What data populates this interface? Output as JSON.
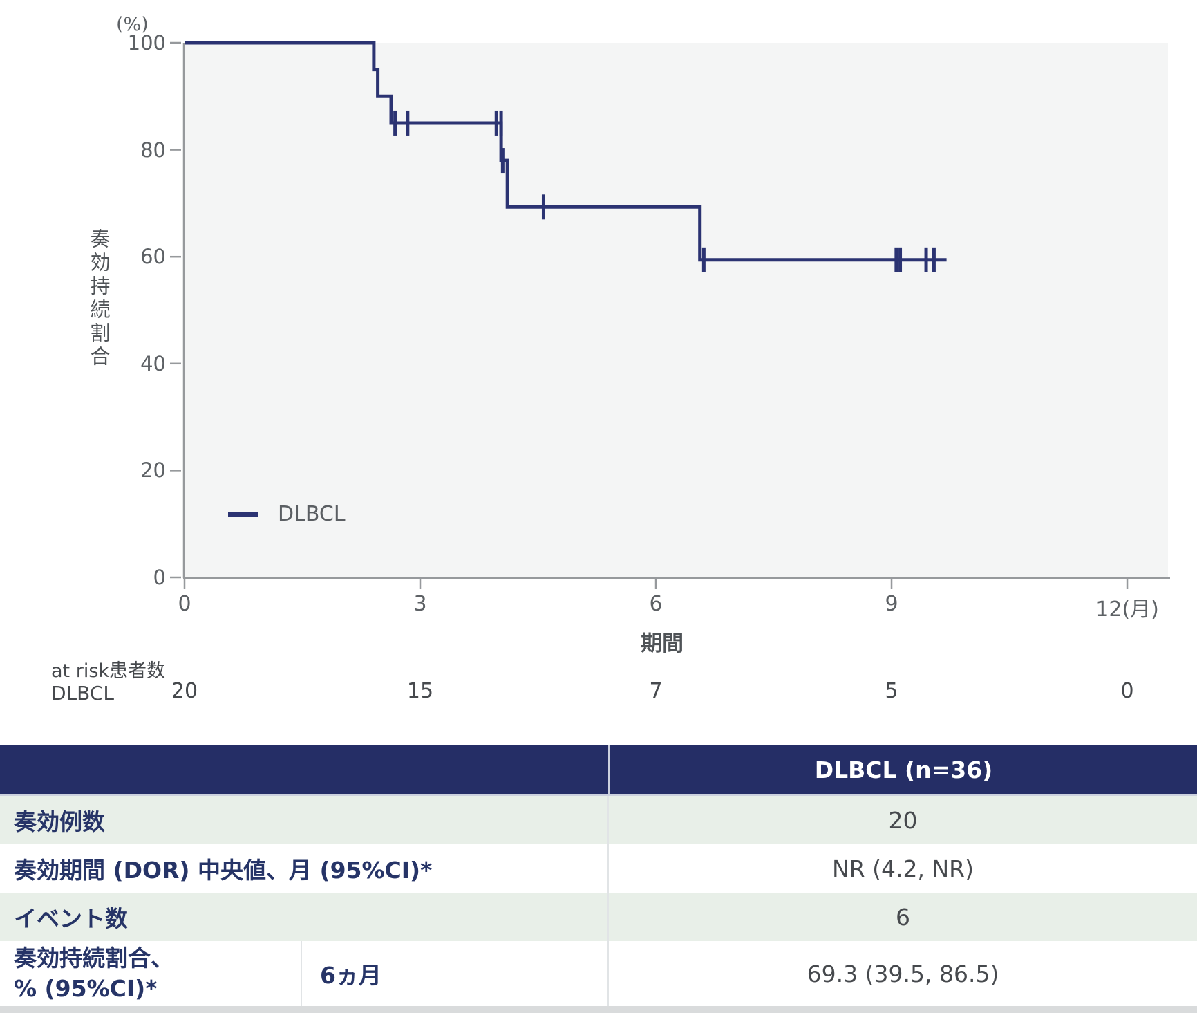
{
  "chart": {
    "y_unit": "(%)",
    "ylabel": "奏効持続割合",
    "xlabel": "期間",
    "legend": "DLBCL"
  },
  "chart_data": {
    "type": "line",
    "subtype": "kaplan-meier-step-curve",
    "title": "",
    "xlabel": "期間",
    "ylabel": "奏効持続割合 (%)",
    "xlim": [
      0,
      12.5
    ],
    "ylim": [
      0,
      100
    ],
    "grid": false,
    "legend_position": "lower-left-inside",
    "xticks": [
      {
        "value": 0,
        "label": "0"
      },
      {
        "value": 3,
        "label": "3"
      },
      {
        "value": 6,
        "label": "6"
      },
      {
        "value": 9,
        "label": "9"
      },
      {
        "value": 12,
        "label": "12(月)"
      }
    ],
    "yticks": [
      {
        "value": 100,
        "label": "100"
      },
      {
        "value": 80,
        "label": "80"
      },
      {
        "value": 60,
        "label": "60"
      },
      {
        "value": 40,
        "label": "40"
      },
      {
        "value": 20,
        "label": "20"
      },
      {
        "value": 0,
        "label": "0"
      }
    ],
    "series": [
      {
        "name": "DLBCL",
        "color": "#2b3372",
        "steps_months_pct": [
          [
            0,
            100
          ],
          [
            2.41,
            100
          ],
          [
            2.41,
            95
          ],
          [
            2.46,
            95
          ],
          [
            2.46,
            90
          ],
          [
            2.63,
            90
          ],
          [
            2.63,
            85
          ],
          [
            4.03,
            85
          ],
          [
            4.03,
            78
          ],
          [
            4.11,
            78
          ],
          [
            4.11,
            69.3
          ],
          [
            6.56,
            69.3
          ],
          [
            6.56,
            59.4
          ],
          [
            9.7,
            59.4
          ]
        ],
        "censor_marks_months_pct": [
          [
            2.68,
            85
          ],
          [
            2.84,
            85
          ],
          [
            3.97,
            85
          ],
          [
            4.03,
            85
          ],
          [
            4.05,
            78
          ],
          [
            4.57,
            69.3
          ],
          [
            6.61,
            59.4
          ],
          [
            9.06,
            59.4
          ],
          [
            9.11,
            59.4
          ],
          [
            9.44,
            59.4
          ],
          [
            9.54,
            59.4
          ]
        ]
      }
    ]
  },
  "at_risk": {
    "title": "at risk患者数",
    "row_label": "DLBCL",
    "values": [
      "20",
      "15",
      "7",
      "5",
      "0"
    ]
  },
  "table": {
    "header_col2": "DLBCL (n=36)",
    "rows": [
      {
        "label": "奏効例数",
        "value": "20"
      },
      {
        "label": "奏効期間 (DOR) 中央値、月 (95%CI)*",
        "value": "NR (4.2, NR)"
      },
      {
        "label": "イベント数",
        "value": "6"
      },
      {
        "label_line1": "奏効持続割合、",
        "label_line2": "% (95%CI)*",
        "sublabel": "6ヵ月",
        "value": "69.3 (39.5, 86.5)"
      }
    ]
  },
  "colors": {
    "curve_navy": "#2b3372",
    "header_navy": "#252e66",
    "row_green": "#e8efe8",
    "plot_background": "#f4f5f5",
    "axis_gray": "#96999c",
    "label_navy": "#263467",
    "value_gray": "#46494d"
  }
}
